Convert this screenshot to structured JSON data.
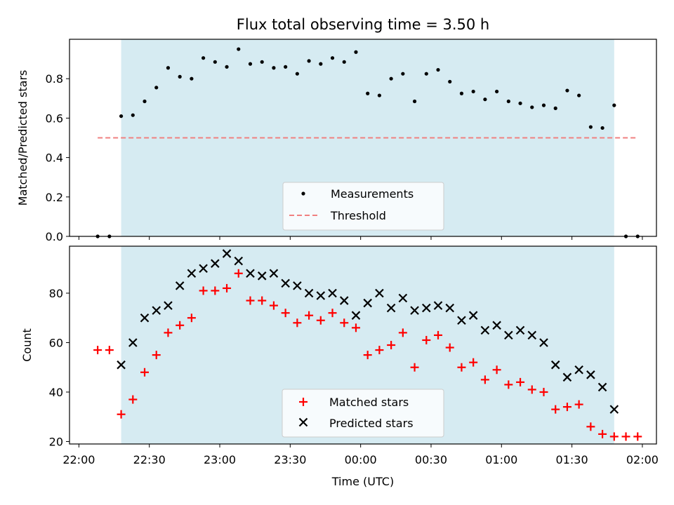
{
  "chart_data": [
    {
      "type": "scatter",
      "title": "Flux total observing time = 3.50 h",
      "xlabel": "",
      "ylabel": "Matched/Predicted stars",
      "xlim": [
        "21:56",
        "02:06"
      ],
      "ylim": [
        0,
        1.0
      ],
      "grid": false,
      "legend_position": "lower center",
      "observing_window": {
        "start": "22:18",
        "end": "01:48",
        "color": "#add8e6"
      },
      "y_ticks": [
        0.0,
        0.2,
        0.4,
        0.6,
        0.8
      ],
      "y_tick_labels": [
        "0.0",
        "0.2",
        "0.4",
        "0.6",
        "0.8"
      ],
      "threshold": {
        "name": "Threshold",
        "value": 0.5,
        "x_start": "22:08",
        "x_end": "01:58",
        "color": "#f08080"
      },
      "series": [
        {
          "name": "Measurements",
          "color": "#000000",
          "marker": "dot",
          "points": [
            [
              "22:08",
              0.0
            ],
            [
              "22:13",
              0.0
            ],
            [
              "22:18",
              0.61
            ],
            [
              "22:23",
              0.615
            ],
            [
              "22:28",
              0.685
            ],
            [
              "22:33",
              0.755
            ],
            [
              "22:38",
              0.855
            ],
            [
              "22:43",
              0.81
            ],
            [
              "22:48",
              0.8
            ],
            [
              "22:53",
              0.905
            ],
            [
              "22:58",
              0.885
            ],
            [
              "23:03",
              0.86
            ],
            [
              "23:08",
              0.95
            ],
            [
              "23:13",
              0.875
            ],
            [
              "23:18",
              0.885
            ],
            [
              "23:23",
              0.855
            ],
            [
              "23:28",
              0.86
            ],
            [
              "23:33",
              0.825
            ],
            [
              "23:38",
              0.89
            ],
            [
              "23:43",
              0.875
            ],
            [
              "23:48",
              0.905
            ],
            [
              "23:53",
              0.885
            ],
            [
              "23:58",
              0.935
            ],
            [
              "00:03",
              0.725
            ],
            [
              "00:08",
              0.715
            ],
            [
              "00:13",
              0.8
            ],
            [
              "00:18",
              0.825
            ],
            [
              "00:23",
              0.685
            ],
            [
              "00:28",
              0.825
            ],
            [
              "00:33",
              0.845
            ],
            [
              "00:38",
              0.785
            ],
            [
              "00:43",
              0.725
            ],
            [
              "00:48",
              0.735
            ],
            [
              "00:53",
              0.695
            ],
            [
              "00:58",
              0.735
            ],
            [
              "01:03",
              0.685
            ],
            [
              "01:08",
              0.675
            ],
            [
              "01:13",
              0.655
            ],
            [
              "01:18",
              0.665
            ],
            [
              "01:23",
              0.65
            ],
            [
              "01:28",
              0.74
            ],
            [
              "01:33",
              0.715
            ],
            [
              "01:38",
              0.555
            ],
            [
              "01:43",
              0.55
            ],
            [
              "01:48",
              0.665
            ],
            [
              "01:53",
              0.0
            ],
            [
              "01:58",
              0.0
            ]
          ]
        }
      ]
    },
    {
      "type": "scatter",
      "title": "",
      "xlabel": "Time (UTC)",
      "ylabel": "Count",
      "xlim": [
        "21:56",
        "02:06"
      ],
      "ylim": [
        19,
        99
      ],
      "grid": false,
      "legend_position": "lower center",
      "observing_window": {
        "start": "22:18",
        "end": "01:48",
        "color": "#add8e6"
      },
      "y_ticks": [
        20,
        40,
        60,
        80
      ],
      "y_tick_labels": [
        "20",
        "40",
        "60",
        "80"
      ],
      "x_ticks": [
        "22:00",
        "22:30",
        "23:00",
        "23:30",
        "00:00",
        "00:30",
        "01:00",
        "01:30",
        "02:00"
      ],
      "x_tick_labels": [
        "22:00",
        "22:30",
        "23:00",
        "23:30",
        "00:00",
        "00:30",
        "01:00",
        "01:30",
        "02:00"
      ],
      "series": [
        {
          "name": "Matched stars",
          "color": "#ff0000",
          "marker": "plus",
          "points": [
            [
              "22:08",
              57
            ],
            [
              "22:13",
              57
            ],
            [
              "22:18",
              31
            ],
            [
              "22:23",
              37
            ],
            [
              "22:28",
              48
            ],
            [
              "22:33",
              55
            ],
            [
              "22:38",
              64
            ],
            [
              "22:43",
              67
            ],
            [
              "22:48",
              70
            ],
            [
              "22:53",
              81
            ],
            [
              "22:58",
              81
            ],
            [
              "23:03",
              82
            ],
            [
              "23:08",
              88
            ],
            [
              "23:13",
              77
            ],
            [
              "23:18",
              77
            ],
            [
              "23:23",
              75
            ],
            [
              "23:28",
              72
            ],
            [
              "23:33",
              68
            ],
            [
              "23:38",
              71
            ],
            [
              "23:43",
              69
            ],
            [
              "23:48",
              72
            ],
            [
              "23:53",
              68
            ],
            [
              "23:58",
              66
            ],
            [
              "00:03",
              55
            ],
            [
              "00:08",
              57
            ],
            [
              "00:13",
              59
            ],
            [
              "00:18",
              64
            ],
            [
              "00:23",
              50
            ],
            [
              "00:28",
              61
            ],
            [
              "00:33",
              63
            ],
            [
              "00:38",
              58
            ],
            [
              "00:43",
              50
            ],
            [
              "00:48",
              52
            ],
            [
              "00:53",
              45
            ],
            [
              "00:58",
              49
            ],
            [
              "01:03",
              43
            ],
            [
              "01:08",
              44
            ],
            [
              "01:13",
              41
            ],
            [
              "01:18",
              40
            ],
            [
              "01:23",
              33
            ],
            [
              "01:28",
              34
            ],
            [
              "01:33",
              35
            ],
            [
              "01:38",
              26
            ],
            [
              "01:43",
              23
            ],
            [
              "01:48",
              22
            ],
            [
              "01:53",
              22
            ],
            [
              "01:58",
              22
            ]
          ]
        },
        {
          "name": "Predicted stars",
          "color": "#000000",
          "marker": "x",
          "points": [
            [
              "22:18",
              51
            ],
            [
              "22:23",
              60
            ],
            [
              "22:28",
              70
            ],
            [
              "22:33",
              73
            ],
            [
              "22:38",
              75
            ],
            [
              "22:43",
              83
            ],
            [
              "22:48",
              88
            ],
            [
              "22:53",
              90
            ],
            [
              "22:58",
              92
            ],
            [
              "23:03",
              96
            ],
            [
              "23:08",
              93
            ],
            [
              "23:13",
              88
            ],
            [
              "23:18",
              87
            ],
            [
              "23:23",
              88
            ],
            [
              "23:28",
              84
            ],
            [
              "23:33",
              83
            ],
            [
              "23:38",
              80
            ],
            [
              "23:43",
              79
            ],
            [
              "23:48",
              80
            ],
            [
              "23:53",
              77
            ],
            [
              "23:58",
              71
            ],
            [
              "00:03",
              76
            ],
            [
              "00:08",
              80
            ],
            [
              "00:13",
              74
            ],
            [
              "00:18",
              78
            ],
            [
              "00:23",
              73
            ],
            [
              "00:28",
              74
            ],
            [
              "00:33",
              75
            ],
            [
              "00:38",
              74
            ],
            [
              "00:43",
              69
            ],
            [
              "00:48",
              71
            ],
            [
              "00:53",
              65
            ],
            [
              "00:58",
              67
            ],
            [
              "01:03",
              63
            ],
            [
              "01:08",
              65
            ],
            [
              "01:13",
              63
            ],
            [
              "01:18",
              60
            ],
            [
              "01:23",
              51
            ],
            [
              "01:28",
              46
            ],
            [
              "01:33",
              49
            ],
            [
              "01:38",
              47
            ],
            [
              "01:43",
              42
            ],
            [
              "01:48",
              33
            ]
          ]
        }
      ]
    }
  ]
}
